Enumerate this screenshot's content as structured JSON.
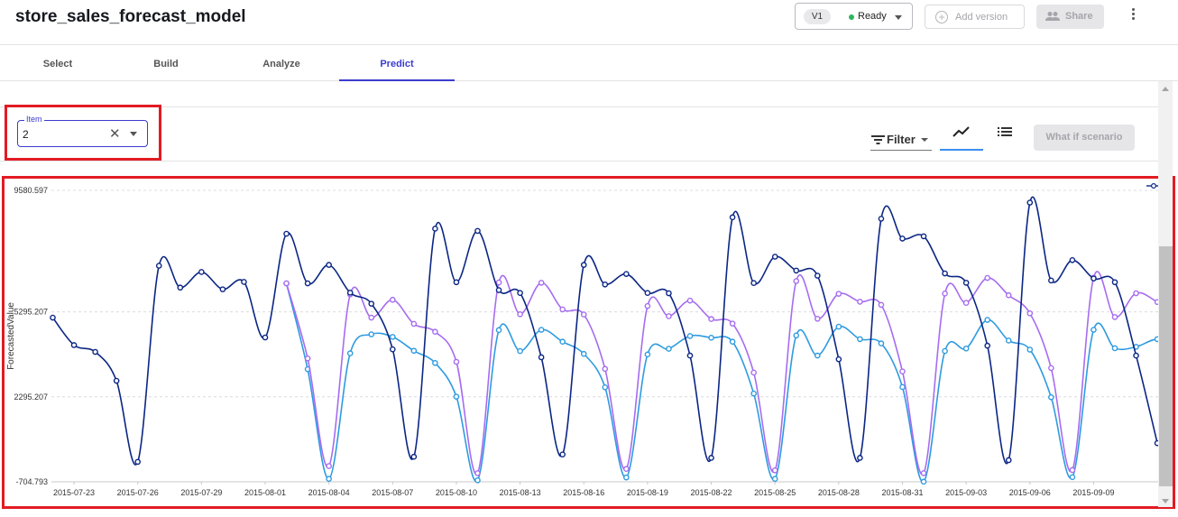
{
  "header": {
    "title": "store_sales_forecast_model",
    "version": "V1",
    "status": "Ready",
    "add_version_label": "Add version",
    "share_label": "Share"
  },
  "tabs": [
    {
      "label": "Select",
      "active": false
    },
    {
      "label": "Build",
      "active": false
    },
    {
      "label": "Analyze",
      "active": false
    },
    {
      "label": "Predict",
      "active": true
    }
  ],
  "item_field": {
    "legend": "Item",
    "value": "2"
  },
  "toolbar": {
    "filter_label": "Filter",
    "what_if_label": "What if scenario"
  },
  "colors": {
    "accent": "#3c3ccf",
    "highlight_border": "#e21b23",
    "series_main": "#0b2684",
    "series_mid": "#a66cf0",
    "series_low": "#2e9be0"
  },
  "chart_data": {
    "type": "line",
    "ylabel": "ForecastedValue",
    "ylim": [
      -704.793,
      9580.597
    ],
    "yticks": [
      9580.597,
      5295.207,
      2295.207,
      -704.793
    ],
    "ytick_labels": [
      "9580.597",
      "5295.207",
      "2295.207",
      "-704.793"
    ],
    "xtick_labels": [
      "2015-07-23",
      "2015-07-26",
      "2015-07-29",
      "2015-08-01",
      "2015-08-04",
      "2015-08-07",
      "2015-08-10",
      "2015-08-13",
      "2015-08-16",
      "2015-08-19",
      "2015-08-22",
      "2015-08-25",
      "2015-08-28",
      "2015-08-31",
      "2015-09-03",
      "2015-09-06",
      "2015-09-09"
    ],
    "start_date": "2015-07-22",
    "grid": true,
    "series": [
      {
        "role": "upper",
        "values": [
          5090,
          4120,
          3880,
          2860,
          0,
          6920,
          6150,
          6700,
          6090,
          6350,
          4390,
          8050,
          6300,
          6950,
          5970,
          5580,
          3970,
          180,
          8230,
          6340,
          8150,
          6060,
          5960,
          3690,
          260,
          6950,
          6260,
          6630,
          5960,
          5950,
          3750,
          140,
          8630,
          6310,
          7240,
          6750,
          6570,
          3620,
          140,
          8580,
          7880,
          7960,
          6650,
          6320,
          4100,
          60,
          9150,
          6400,
          7120,
          6470,
          6340,
          3750,
          660
        ]
      },
      {
        "role": "middle",
        "start_index": 11,
        "values": [
          6300,
          3650,
          -150,
          5910,
          5090,
          5720,
          4870,
          4590,
          3530,
          -400,
          6330,
          5210,
          6320,
          5380,
          5200,
          3280,
          -250,
          5500,
          5140,
          5690,
          5040,
          4880,
          3150,
          -300,
          6380,
          5050,
          5930,
          5650,
          5540,
          3190,
          -400,
          5940,
          5610,
          6490,
          5880,
          5240,
          3310,
          -290,
          6500,
          5110,
          5950,
          5640,
          5170,
          3260,
          240
        ]
      },
      {
        "role": "lower",
        "start_index": 11,
        "values": [
          6300,
          3270,
          -600,
          3830,
          4500,
          4410,
          3920,
          3490,
          2300,
          -650,
          4650,
          3910,
          4660,
          4240,
          3810,
          2630,
          -550,
          3790,
          3990,
          4440,
          4380,
          4240,
          2410,
          -600,
          4460,
          3750,
          4770,
          4330,
          4180,
          2640,
          -700,
          3910,
          4000,
          5010,
          4280,
          3960,
          2280,
          -540,
          4660,
          4010,
          4060,
          4330,
          4070,
          2300,
          100
        ]
      }
    ]
  }
}
